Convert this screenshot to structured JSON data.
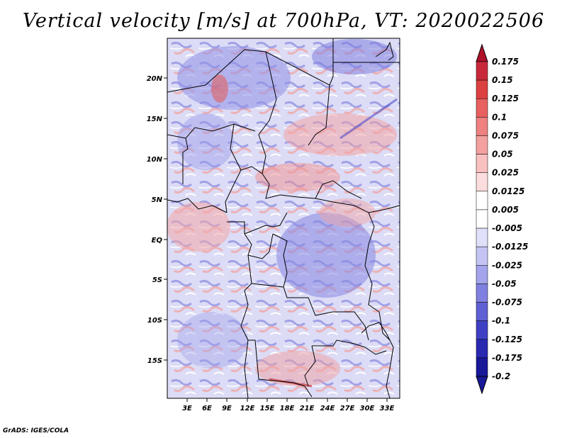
{
  "title": "Vertical velocity [m/s] at 700hPa, VT: 2020022506",
  "credit": "GrADS: IGES/COLA",
  "map": {
    "lon_ticks": [
      "3E",
      "6E",
      "9E",
      "12E",
      "15E",
      "18E",
      "21E",
      "24E",
      "27E",
      "30E",
      "33E"
    ],
    "lat_ticks": [
      "20N",
      "15N",
      "10N",
      "5N",
      "EQ",
      "5S",
      "10S",
      "15S"
    ]
  },
  "colorbar": {
    "labels": [
      "0.175",
      "0.15",
      "0.125",
      "0.1",
      "0.075",
      "0.05",
      "0.025",
      "0.0125",
      "0.005",
      "-0.005",
      "-0.0125",
      "-0.025",
      "-0.05",
      "-0.075",
      "-0.1",
      "-0.125",
      "-0.175",
      "-0.2"
    ],
    "colors": [
      "#b0102a",
      "#c8283a",
      "#dc4040",
      "#e86060",
      "#ee8080",
      "#f4a0a0",
      "#f8c0c0",
      "#fcdcdc",
      "#ffffff",
      "#ffffff",
      "#e0e0fb",
      "#c4c4f4",
      "#a4a4ec",
      "#8080e0",
      "#6060d4",
      "#4040c4",
      "#2828b0",
      "#181898"
    ]
  }
}
